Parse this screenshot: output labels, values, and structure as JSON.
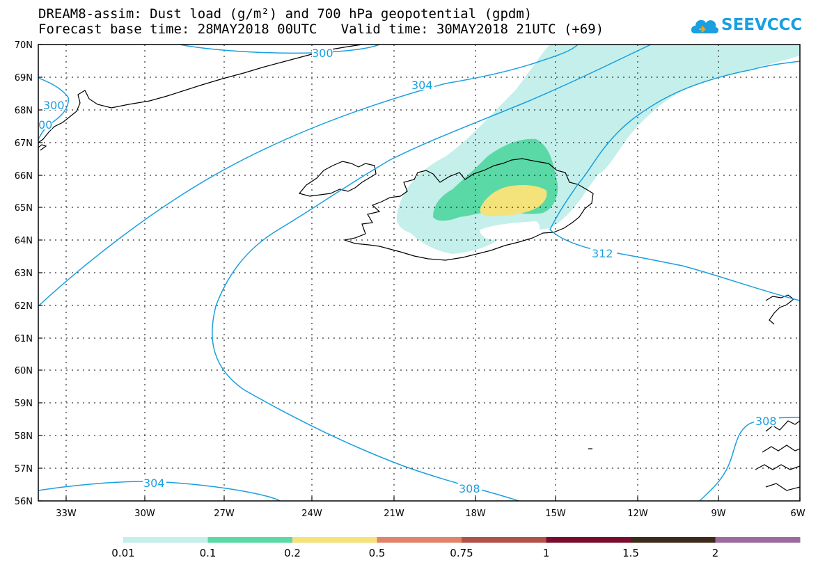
{
  "title": {
    "line1": "DREAM8-assim: Dust load (g/m²) and 700 hPa geopotential (gpdm)",
    "line2": "Forecast base time: 28MAY2018 00UTC   Valid time: 30MAY2018 21UTC (+69)"
  },
  "logo": {
    "text": "SEEVCCC",
    "icon": "cloud-icon",
    "color": "#1a9fe0"
  },
  "axes": {
    "lat_labels": [
      "70N",
      "69N",
      "68N",
      "67N",
      "66N",
      "65N",
      "64N",
      "63N",
      "62N",
      "61N",
      "60N",
      "59N",
      "58N",
      "57N",
      "56N"
    ],
    "lon_labels": [
      "33W",
      "30W",
      "27W",
      "24W",
      "21W",
      "18W",
      "15W",
      "12W",
      "9W",
      "6W"
    ]
  },
  "contours": {
    "color": "#1a9fe0",
    "labels": [
      "300",
      "300",
      "00",
      "304",
      "304",
      "308",
      "312",
      "308"
    ]
  },
  "colorbar": {
    "colors": [
      "#c4efea",
      "#5ad8a6",
      "#f4e27a",
      "#e0836a",
      "#b05247",
      "#7a0d2e",
      "#3d2a1a",
      "#9b6b9e"
    ],
    "labels": [
      "0.01",
      "0.1",
      "0.2",
      "0.5",
      "0.75",
      "1",
      "1.5",
      "2"
    ]
  }
}
